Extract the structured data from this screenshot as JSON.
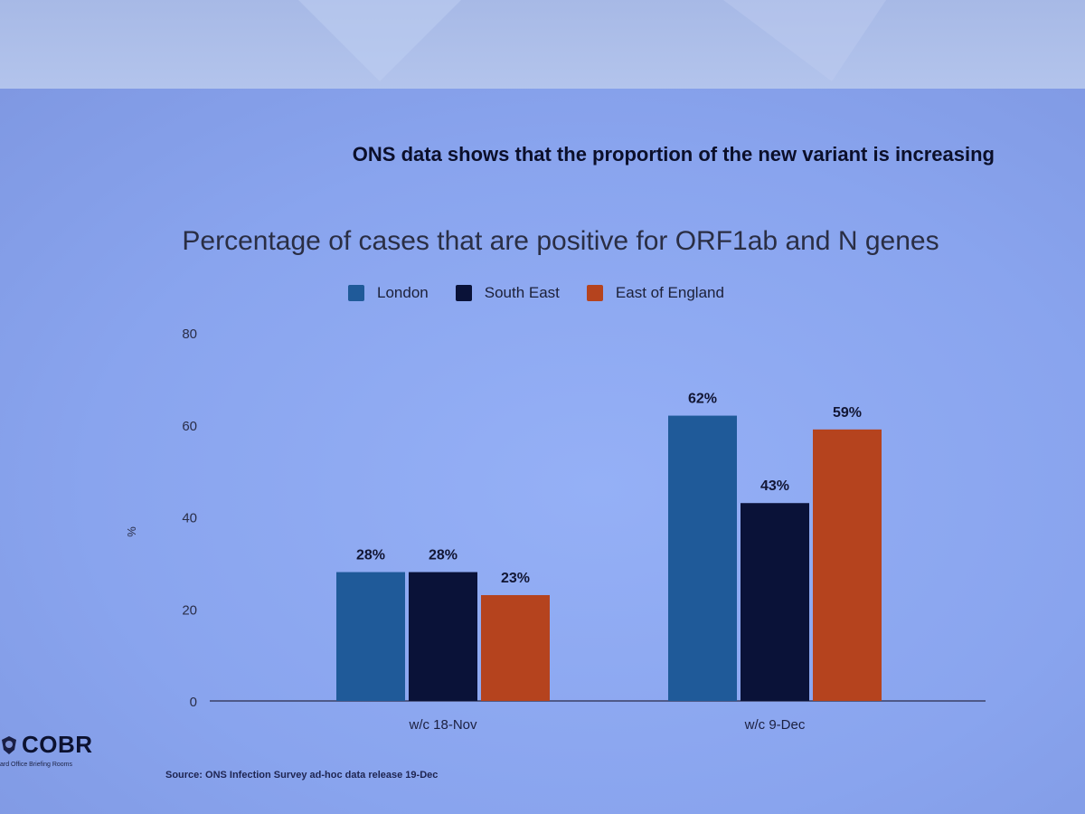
{
  "slide": {
    "headline": "ONS data shows that the proportion of the new variant is increasing",
    "source": "Source: ONS Infection Survey ad-hoc data release 19-Dec",
    "logo_text": "COBR",
    "logo_subtext": "ard Office Briefing Rooms"
  },
  "chart_data": {
    "type": "bar",
    "title": "Percentage of cases that are positive for ORF1ab and N genes",
    "ylabel": "%",
    "xlabel": "",
    "ylim": [
      0,
      80
    ],
    "yticks": [
      0,
      20,
      40,
      60,
      80
    ],
    "categories": [
      "w/c 18-Nov",
      "w/c 9-Dec"
    ],
    "series": [
      {
        "name": "London",
        "values": [
          28,
          62
        ],
        "labels": [
          "28%",
          "62%"
        ],
        "color": "#1f5a99"
      },
      {
        "name": "South East",
        "values": [
          28,
          43
        ],
        "labels": [
          "28%",
          "43%"
        ],
        "color": "#0a1238"
      },
      {
        "name": "East of England",
        "values": [
          23,
          59
        ],
        "labels": [
          "23%",
          "59%"
        ],
        "color": "#b5431e"
      }
    ],
    "legend_position": "top-center",
    "grid": false
  }
}
